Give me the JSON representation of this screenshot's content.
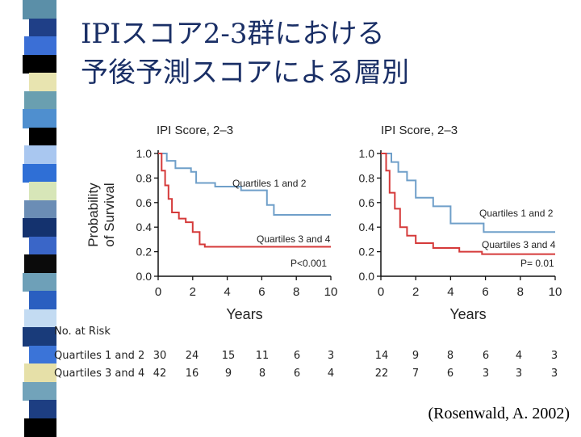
{
  "slide": {
    "title_line1": "IPIスコア2-3群における",
    "title_line2": "予後予測スコアによる層別",
    "citation": "(Rosenwald, A. 2002)"
  },
  "colors": {
    "title": "#1a2f66",
    "quartiles12_line": "#6f9fc9",
    "quartiles34_line": "#d53a3a",
    "stripe": [
      "#5b8fa8",
      "#1f3f87",
      "#3b6fd6",
      "#000000",
      "#e8e4b0",
      "#6a9fb0",
      "#4f8fcf",
      "#000000",
      "#a9c7f0",
      "#2f6fd6",
      "#d7e6b8",
      "#6b8db5",
      "#14326e",
      "#3a66c8",
      "#0b0b0b",
      "#6ea0b8",
      "#2a5fc0",
      "#c3dbf2",
      "#193b7a",
      "#3b74d8",
      "#e6e0a8",
      "#72a3ba",
      "#1d3e82",
      "#000000"
    ]
  },
  "chart_data": [
    {
      "type": "line",
      "title": "IPI Score, 2–3",
      "xlabel": "Years",
      "ylabel": "Probability of Survival",
      "xlim": [
        0,
        10
      ],
      "ylim": [
        0,
        1.0
      ],
      "xticks": [
        "0",
        "2",
        "4",
        "6",
        "8",
        "10"
      ],
      "yticks": [
        "0.0",
        "0.2",
        "0.4",
        "0.6",
        "0.8",
        "1.0"
      ],
      "pvalue": "P<0.001",
      "series": [
        {
          "name": "Quartiles 1 and 2",
          "label_text": "Quartiles 1 and 2",
          "x": [
            0,
            0.5,
            0.5,
            1.0,
            1.0,
            1.9,
            1.9,
            2.2,
            2.2,
            3.3,
            3.3,
            4.8,
            4.8,
            6.3,
            6.3,
            6.7,
            6.7,
            10.0
          ],
          "y": [
            1.0,
            1.0,
            0.94,
            0.94,
            0.88,
            0.88,
            0.85,
            0.85,
            0.76,
            0.76,
            0.73,
            0.73,
            0.7,
            0.7,
            0.58,
            0.58,
            0.5,
            0.5
          ]
        },
        {
          "name": "Quartiles 3 and 4",
          "label_text": "Quartiles 3 and 4",
          "x": [
            0,
            0.2,
            0.2,
            0.4,
            0.4,
            0.6,
            0.6,
            0.8,
            0.8,
            1.2,
            1.2,
            1.6,
            1.6,
            2.0,
            2.0,
            2.4,
            2.4,
            2.7,
            2.7,
            10.0
          ],
          "y": [
            1.0,
            1.0,
            0.86,
            0.86,
            0.74,
            0.74,
            0.63,
            0.63,
            0.52,
            0.52,
            0.47,
            0.47,
            0.44,
            0.44,
            0.36,
            0.36,
            0.26,
            0.26,
            0.24,
            0.24
          ]
        }
      ]
    },
    {
      "type": "line",
      "title": "IPI Score, 2–3",
      "xlabel": "Years",
      "ylabel": "",
      "xlim": [
        0,
        10
      ],
      "ylim": [
        0,
        1.0
      ],
      "xticks": [
        "0",
        "2",
        "4",
        "6",
        "8",
        "10"
      ],
      "yticks": [
        "0.0",
        "0.2",
        "0.4",
        "0.6",
        "0.8",
        "1.0"
      ],
      "pvalue": "P= 0.01",
      "series": [
        {
          "name": "Quartiles 1 and 2",
          "label_text": "Quartiles 1 and 2",
          "x": [
            0,
            0.6,
            0.6,
            1.0,
            1.0,
            1.5,
            1.5,
            2.0,
            2.0,
            3.0,
            3.0,
            4.0,
            4.0,
            5.9,
            5.9,
            10.0
          ],
          "y": [
            1.0,
            1.0,
            0.93,
            0.93,
            0.85,
            0.85,
            0.78,
            0.78,
            0.64,
            0.64,
            0.57,
            0.57,
            0.43,
            0.43,
            0.36,
            0.36
          ]
        },
        {
          "name": "Quartiles 3 and 4",
          "label_text": "Quartiles 3 and 4",
          "x": [
            0,
            0.3,
            0.3,
            0.5,
            0.5,
            0.8,
            0.8,
            1.1,
            1.1,
            1.5,
            1.5,
            2.0,
            2.0,
            3.0,
            3.0,
            4.5,
            4.5,
            5.8,
            5.8,
            10.0
          ],
          "y": [
            1.0,
            1.0,
            0.86,
            0.86,
            0.68,
            0.68,
            0.55,
            0.55,
            0.4,
            0.4,
            0.33,
            0.33,
            0.27,
            0.27,
            0.23,
            0.23,
            0.2,
            0.2,
            0.18,
            0.18
          ]
        }
      ]
    }
  ],
  "risk_table": {
    "heading": "No. at Risk",
    "rows": [
      {
        "label": "Quartiles 1 and 2",
        "left": [
          "30",
          "24",
          "15",
          "11",
          "6",
          "3"
        ],
        "right": [
          "14",
          "9",
          "8",
          "6",
          "4",
          "3"
        ]
      },
      {
        "label": "Quartiles 3 and 4",
        "left": [
          "42",
          "16",
          "9",
          "8",
          "6",
          "4"
        ],
        "right": [
          "22",
          "7",
          "6",
          "3",
          "3",
          "3"
        ]
      }
    ]
  }
}
